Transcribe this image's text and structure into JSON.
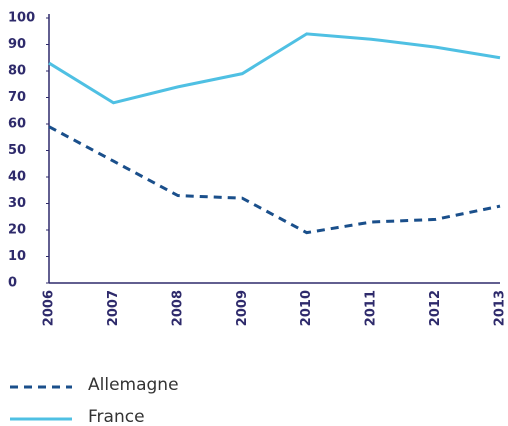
{
  "chart_data": {
    "type": "line",
    "categories": [
      "2006",
      "2007",
      "2008",
      "2009",
      "2010",
      "2011",
      "2012",
      "2013"
    ],
    "series": [
      {
        "name": "Allemagne",
        "color": "#1a4f8b",
        "dash": true,
        "values": [
          59,
          46,
          33,
          32,
          19,
          23,
          24,
          29
        ]
      },
      {
        "name": "France",
        "color": "#4fc0e3",
        "dash": false,
        "values": [
          83,
          68,
          74,
          79,
          94,
          92,
          89,
          85
        ]
      }
    ],
    "ylim": [
      0,
      100
    ],
    "yticks": [
      0,
      10,
      20,
      30,
      40,
      50,
      60,
      70,
      80,
      90,
      100
    ],
    "grid": false,
    "legend": "bottom"
  }
}
